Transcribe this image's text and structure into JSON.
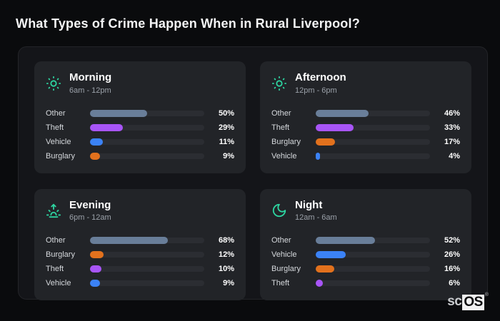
{
  "title": "What Types of Crime Happen When in Rural Liverpool?",
  "brand": {
    "prefix": "sc",
    "suffix": "OS",
    "registered": "®"
  },
  "colors": {
    "background": "#0a0b0d",
    "panel": "#141519",
    "card": "#222428",
    "bar_track": "#2b2d32",
    "icon_accent": "#2dd4a0",
    "series": {
      "Other": "#697e99",
      "Theft": "#a855f7",
      "Vehicle": "#3b82f6",
      "Burglary": "#e2711d"
    }
  },
  "chart_data": [
    {
      "type": "bar",
      "orientation": "horizontal",
      "title": "Morning",
      "subtitle": "6am - 12pm",
      "icon": "sun-icon",
      "unit": "%",
      "xlim": [
        0,
        100
      ],
      "categories": [
        "Other",
        "Theft",
        "Vehicle",
        "Burglary"
      ],
      "values": [
        50,
        29,
        11,
        9
      ]
    },
    {
      "type": "bar",
      "orientation": "horizontal",
      "title": "Afternoon",
      "subtitle": "12pm - 6pm",
      "icon": "sun-icon",
      "unit": "%",
      "xlim": [
        0,
        100
      ],
      "categories": [
        "Other",
        "Theft",
        "Burglary",
        "Vehicle"
      ],
      "values": [
        46,
        33,
        17,
        4
      ]
    },
    {
      "type": "bar",
      "orientation": "horizontal",
      "title": "Evening",
      "subtitle": "6pm - 12am",
      "icon": "sunrise-icon",
      "unit": "%",
      "xlim": [
        0,
        100
      ],
      "categories": [
        "Other",
        "Burglary",
        "Theft",
        "Vehicle"
      ],
      "values": [
        68,
        12,
        10,
        9
      ]
    },
    {
      "type": "bar",
      "orientation": "horizontal",
      "title": "Night",
      "subtitle": "12am - 6am",
      "icon": "moon-icon",
      "unit": "%",
      "xlim": [
        0,
        100
      ],
      "categories": [
        "Other",
        "Vehicle",
        "Burglary",
        "Theft"
      ],
      "values": [
        52,
        26,
        16,
        6
      ]
    }
  ]
}
